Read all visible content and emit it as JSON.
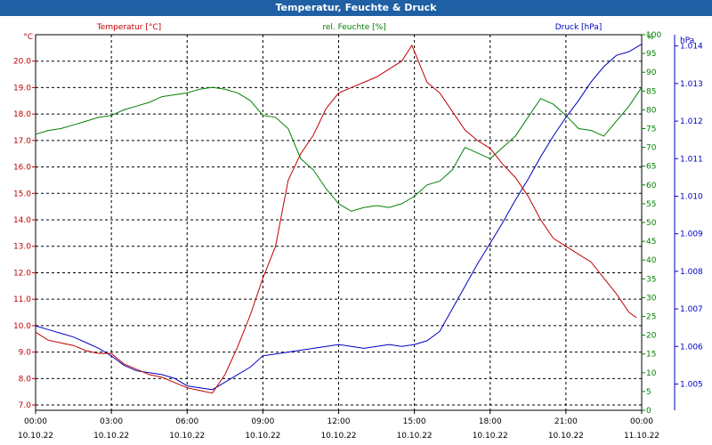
{
  "title": "Temperatur, Feuchte & Druck",
  "chart_data": {
    "type": "line",
    "title": "Temperatur, Feuchte & Druck",
    "x_ticks": [
      {
        "time": "00:00",
        "date": "10.10.22"
      },
      {
        "time": "03:00",
        "date": "10.10.22"
      },
      {
        "time": "06:00",
        "date": "10.10.22"
      },
      {
        "time": "09:00",
        "date": "10.10.22"
      },
      {
        "time": "12:00",
        "date": "10.10.22"
      },
      {
        "time": "15:00",
        "date": "10.10.22"
      },
      {
        "time": "18:00",
        "date": "10.10.22"
      },
      {
        "time": "21:00",
        "date": "10.10.22"
      },
      {
        "time": "00:00",
        "date": "11.10.22"
      }
    ],
    "x_range_hours": [
      0,
      24
    ],
    "axes": {
      "temperature": {
        "label": "Temperatur [°C]",
        "unit": "°C",
        "range": [
          6.8,
          21.0
        ],
        "ticks": [
          "7.0",
          "8.0",
          "9.0",
          "10.0",
          "11.0",
          "12.0",
          "13.0",
          "14.0",
          "15.0",
          "16.0",
          "17.0",
          "18.0",
          "19.0",
          "20.0"
        ],
        "color": "#c00000"
      },
      "humidity": {
        "label": "rel. Feuchte [%]",
        "unit": "%",
        "range": [
          0,
          100
        ],
        "ticks": [
          "0",
          "5",
          "10",
          "15",
          "20",
          "25",
          "30",
          "35",
          "40",
          "45",
          "50",
          "55",
          "60",
          "65",
          "70",
          "75",
          "80",
          "85",
          "90",
          "95",
          "100"
        ],
        "color": "#008000"
      },
      "pressure": {
        "label": "Druck [hPa]",
        "unit": "hPa",
        "range": [
          1004.3,
          1014.3
        ],
        "ticks": [
          "1.005",
          "1.006",
          "1.007",
          "1.008",
          "1.009",
          "1.010",
          "1.011",
          "1.012",
          "1.013",
          "1.014"
        ],
        "tick_values": [
          1005,
          1006,
          1007,
          1008,
          1009,
          1010,
          1011,
          1012,
          1013,
          1014
        ],
        "color": "#0000c0"
      }
    },
    "series": [
      {
        "name": "Temperatur [°C]",
        "axis": "temperature",
        "color": "#c00000",
        "x": [
          0,
          0.5,
          1,
          1.5,
          2,
          2.5,
          3,
          3.5,
          4,
          4.5,
          5,
          5.5,
          6,
          6.5,
          7,
          7.5,
          8,
          8.5,
          9,
          9.5,
          10,
          10.5,
          11,
          11.5,
          12,
          12.5,
          13,
          13.5,
          14,
          14.5,
          14.9,
          15.5,
          16,
          16.5,
          17,
          17.5,
          18,
          18.5,
          19,
          19.5,
          20,
          20.5,
          21,
          21.5,
          22,
          22.5,
          23,
          23.5,
          23.8
        ],
        "values": [
          9.75,
          9.45,
          9.35,
          9.25,
          9.05,
          8.95,
          8.95,
          8.55,
          8.35,
          8.15,
          8.05,
          7.85,
          7.65,
          7.55,
          7.45,
          8.15,
          9.2,
          10.4,
          11.8,
          13.0,
          15.5,
          16.5,
          17.2,
          18.2,
          18.8,
          19.0,
          19.2,
          19.4,
          19.7,
          20.0,
          20.6,
          19.2,
          18.8,
          18.1,
          17.4,
          17.0,
          16.7,
          16.1,
          15.6,
          14.9,
          14.0,
          13.3,
          13.0,
          12.7,
          12.4,
          11.8,
          11.2,
          10.5,
          10.3
        ]
      },
      {
        "name": "rel. Feuchte [%]",
        "axis": "humidity",
        "color": "#008000",
        "x": [
          0,
          0.5,
          1,
          1.5,
          2,
          2.5,
          3,
          3.5,
          4,
          4.5,
          5,
          5.5,
          6,
          6.5,
          7,
          7.5,
          8,
          8.5,
          9,
          9.5,
          10,
          10.5,
          11,
          11.5,
          12,
          12.5,
          13,
          13.5,
          14,
          14.5,
          15,
          15.5,
          16,
          16.5,
          17,
          17.5,
          18,
          18.5,
          19,
          19.5,
          20,
          20.5,
          21,
          21.5,
          22,
          22.5,
          23,
          23.5,
          24
        ],
        "values": [
          73.5,
          74.5,
          75,
          76,
          77,
          78,
          78.5,
          80,
          81,
          82,
          83.5,
          84,
          84.5,
          85.5,
          86,
          85.5,
          84.5,
          82.5,
          78.5,
          78,
          75,
          67,
          64,
          59,
          55,
          53,
          54,
          54.5,
          54,
          55,
          57,
          60,
          61,
          64,
          70,
          68.5,
          67,
          70,
          73,
          78,
          83,
          81.5,
          78.5,
          75,
          74.5,
          73,
          77,
          81,
          86
        ]
      },
      {
        "name": "Druck [hPa]",
        "axis": "pressure",
        "color": "#0000c0",
        "x": [
          0,
          0.5,
          1,
          1.5,
          2,
          2.5,
          3,
          3.5,
          4,
          4.5,
          5,
          5.5,
          6,
          6.5,
          7,
          7.5,
          8,
          8.5,
          9,
          9.5,
          10,
          10.5,
          11,
          11.5,
          12,
          12.5,
          13,
          13.5,
          14,
          14.5,
          15,
          15.5,
          16,
          16.5,
          17,
          17.5,
          18,
          18.5,
          19,
          19.5,
          20,
          20.5,
          21,
          21.5,
          22,
          22.5,
          23,
          23.5,
          24
        ],
        "values": [
          1006.55,
          1006.45,
          1006.35,
          1006.25,
          1006.1,
          1005.95,
          1005.75,
          1005.5,
          1005.35,
          1005.3,
          1005.25,
          1005.15,
          1004.95,
          1004.9,
          1004.85,
          1005.05,
          1005.25,
          1005.45,
          1005.75,
          1005.8,
          1005.85,
          1005.9,
          1005.95,
          1006.0,
          1006.05,
          1006.0,
          1005.95,
          1006.0,
          1006.05,
          1006.0,
          1006.05,
          1006.15,
          1006.4,
          1007.0,
          1007.6,
          1008.2,
          1008.75,
          1009.3,
          1009.9,
          1010.45,
          1011.05,
          1011.6,
          1012.1,
          1012.55,
          1013.05,
          1013.45,
          1013.75,
          1013.85,
          1014.05
        ]
      }
    ],
    "grid": true
  }
}
